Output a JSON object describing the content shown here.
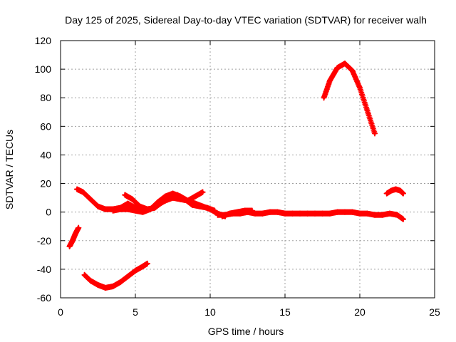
{
  "chart_data": {
    "type": "scatter",
    "title": "Day 125 of 2025, Sidereal Day-to-day VTEC variation (SDTVAR) for receiver walh",
    "xlabel": "GPS time / hours",
    "ylabel": "SDTVAR / TECUs",
    "xlim": [
      0,
      25
    ],
    "ylim": [
      -60,
      120
    ],
    "xticks": [
      0,
      5,
      10,
      15,
      20,
      25
    ],
    "yticks": [
      -60,
      -40,
      -20,
      0,
      20,
      40,
      60,
      80,
      100,
      120
    ],
    "xtick_labels": [
      "0",
      "5",
      "10",
      "15",
      "20",
      "25"
    ],
    "ytick_labels": [
      "-60",
      "-40",
      "-20",
      "0",
      "20",
      "40",
      "60",
      "80",
      "100",
      "120"
    ],
    "grid": true,
    "marker": "plus",
    "series_color": "#ff0000",
    "series": [
      {
        "name": "track-1",
        "x": [
          0.6,
          0.8,
          1.0,
          1.2
        ],
        "y": [
          -24,
          -20,
          -15,
          -11
        ]
      },
      {
        "name": "track-2",
        "x": [
          1.1,
          1.5,
          2.0,
          2.5,
          3.0,
          3.5,
          4.0,
          4.5,
          5.0,
          5.5,
          6.0,
          6.5,
          7.0,
          7.5,
          8.0,
          8.5,
          9.0,
          9.5,
          10.0,
          10.5,
          11.0
        ],
        "y": [
          16,
          14,
          9,
          4,
          2,
          2,
          3,
          6,
          3,
          1,
          2,
          5,
          8,
          10,
          9,
          8,
          6,
          4,
          2,
          -1,
          -3
        ]
      },
      {
        "name": "track-3",
        "x": [
          3.5,
          4.0,
          4.5,
          5.0,
          5.5,
          6.0,
          6.5,
          7.0,
          7.5,
          8.0,
          8.5,
          9.0,
          9.5
        ],
        "y": [
          1,
          2,
          2,
          1,
          0,
          2,
          7,
          11,
          13,
          11,
          8,
          11,
          14
        ]
      },
      {
        "name": "track-4",
        "x": [
          4.3,
          4.8,
          5.3,
          5.8,
          6.3,
          6.8,
          7.3,
          7.8,
          8.3,
          8.8,
          9.3,
          9.8,
          10.3
        ],
        "y": [
          12,
          9,
          4,
          2,
          3,
          7,
          10,
          12,
          9,
          5,
          4,
          3,
          1
        ]
      },
      {
        "name": "track-5",
        "x": [
          10.5,
          11.0,
          11.5,
          12.0,
          12.5,
          13.0,
          13.5,
          14.0,
          14.5,
          15.0,
          15.5,
          16.0,
          16.5,
          17.0,
          17.5,
          18.0,
          18.5,
          19.0,
          19.5,
          20.0,
          20.5,
          21.0,
          21.5,
          22.0,
          22.5,
          22.9
        ],
        "y": [
          -2,
          -2,
          -1,
          -1,
          0,
          -1,
          -1,
          0,
          0,
          -1,
          -1,
          -1,
          -1,
          -1,
          -1,
          -1,
          0,
          0,
          0,
          -1,
          -1,
          -2,
          -2,
          -1,
          -2,
          -5
        ]
      },
      {
        "name": "track-6",
        "x": [
          10.8,
          11.3,
          11.8,
          12.3,
          12.8
        ],
        "y": [
          -3,
          -1,
          0,
          1,
          1
        ]
      },
      {
        "name": "track-7",
        "x": [
          1.6,
          2.0,
          2.5,
          3.0,
          3.5,
          4.0,
          4.5,
          5.0,
          5.5,
          5.8
        ],
        "y": [
          -44,
          -48,
          -51,
          -53,
          -52,
          -49,
          -45,
          -41,
          -38,
          -36
        ]
      },
      {
        "name": "track-8",
        "x": [
          17.6,
          18.0,
          18.5,
          19.0,
          19.5,
          20.0,
          20.5,
          21.0
        ],
        "y": [
          80,
          92,
          101,
          104,
          99,
          87,
          71,
          55
        ]
      },
      {
        "name": "track-9",
        "x": [
          21.8,
          22.1,
          22.4,
          22.7,
          22.9
        ],
        "y": [
          13,
          15,
          16,
          15,
          13
        ]
      }
    ]
  }
}
